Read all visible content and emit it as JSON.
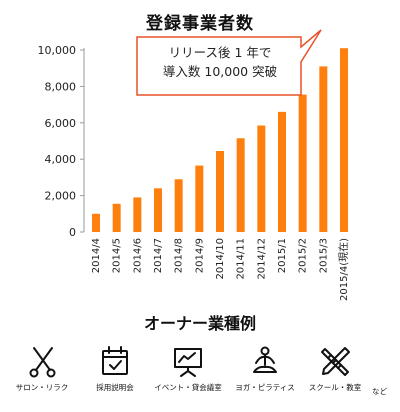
{
  "chart_data": {
    "type": "bar",
    "title": "登録事業者数",
    "categories": [
      "2014/4",
      "2014/5",
      "2014/6",
      "2014/7",
      "2014/8",
      "2014/9",
      "2014/10",
      "2014/11",
      "2014/12",
      "2015/1",
      "2015/2",
      "2015/3",
      "2015/4"
    ],
    "category_suffix_last": "(現在)",
    "values": [
      1000,
      1550,
      1900,
      2400,
      2900,
      3650,
      4450,
      5150,
      5850,
      6600,
      7550,
      9100,
      10100
    ],
    "ylim": [
      0,
      10000
    ],
    "yticks": [
      "0",
      "2,000",
      "4,000",
      "6,000",
      "8,000",
      "10,000"
    ],
    "xlabel": "",
    "ylabel": "",
    "grid": false,
    "bar_color": "#ff7f0e",
    "annotation": {
      "line1": "リリース後 1 年で",
      "line2": "導入数 10,000 突破",
      "border_color": "#e8522a"
    }
  },
  "owner_section": {
    "title": "オーナー業種例",
    "items": [
      {
        "label": "サロン・リラク",
        "icon": "scissors-icon"
      },
      {
        "label": "採用説明会",
        "icon": "calendar-icon"
      },
      {
        "label": "イベント・貸会議室",
        "icon": "presentation-board-icon"
      },
      {
        "label": "ヨガ・ピラティス",
        "icon": "yoga-pose-icon"
      },
      {
        "label": "スクール・教室",
        "icon": "pencil-ruler-icon"
      }
    ],
    "extra_label": "など"
  }
}
